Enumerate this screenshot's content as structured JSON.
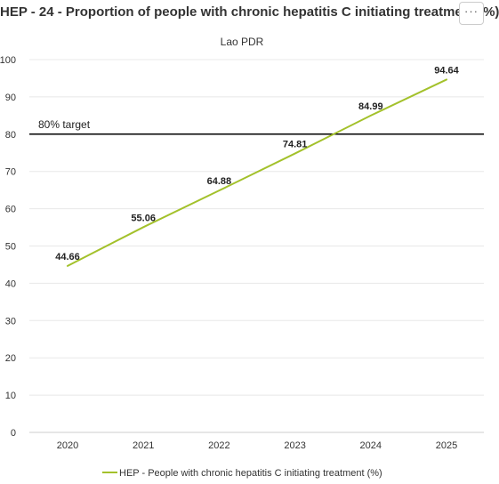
{
  "header": {
    "title": "HEP - 24 - Proportion of people with chronic hepatitis C initiating treatment (%)",
    "menu_icon": "more-horizontal-icon",
    "menu_label": "···"
  },
  "chart_data": {
    "type": "line",
    "title": "HEP - 24 - Proportion of people with chronic hepatitis C initiating treatment (%)",
    "subtitle": "Lao PDR",
    "xlabel": "",
    "ylabel": "",
    "categories": [
      "2020",
      "2021",
      "2022",
      "2023",
      "2024",
      "2025"
    ],
    "series": [
      {
        "name": "HEP - People with chronic hepatitis C initiating treatment (%)",
        "color": "#a3c12b",
        "values": [
          44.66,
          55.06,
          64.88,
          74.81,
          84.99,
          94.64
        ],
        "labels": [
          "44.66",
          "55.06",
          "64.88",
          "74.81",
          "84.99",
          "94.64"
        ]
      }
    ],
    "ylim": [
      0,
      100
    ],
    "yticks": [
      0,
      10,
      20,
      30,
      40,
      50,
      60,
      70,
      80,
      90,
      100
    ],
    "ytick_labels": [
      "0",
      "10",
      "20",
      "30",
      "40",
      "50",
      "60",
      "70",
      "80",
      "90",
      "100"
    ],
    "grid": true,
    "legend_position": "bottom",
    "target": {
      "value": 80,
      "label": "80% target",
      "color": "#000000"
    }
  }
}
